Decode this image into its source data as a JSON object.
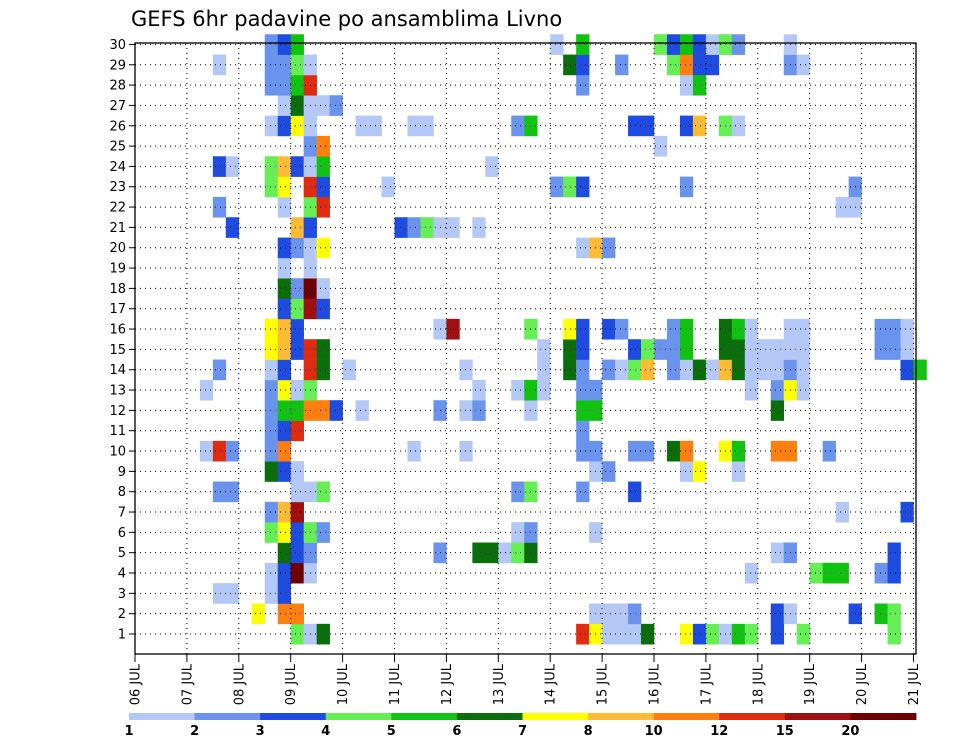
{
  "chart_data": {
    "type": "heatmap",
    "title": "GEFS 6hr padavine po ansamblima Livno",
    "y_ticks": [
      "1",
      "2",
      "3",
      "4",
      "5",
      "6",
      "7",
      "8",
      "9",
      "10",
      "11",
      "12",
      "13",
      "14",
      "15",
      "16",
      "17",
      "18",
      "19",
      "20",
      "21",
      "22",
      "23",
      "24",
      "25",
      "26",
      "27",
      "28",
      "29",
      "30"
    ],
    "x_ticks": [
      "06 JUL",
      "07 JUL",
      "08 JUL",
      "09 JUL",
      "10 JUL",
      "11 JUL",
      "12 JUL",
      "13 JUL",
      "14 JUL",
      "15 JUL",
      "16 JUL",
      "17 JUL",
      "18 JUL",
      "19 JUL",
      "20 JUL",
      "21 JUL"
    ],
    "grid": true,
    "colorbar": {
      "ticks": [
        "1",
        "2",
        "3",
        "4",
        "5",
        "6",
        "7",
        "8",
        "10",
        "12",
        "15",
        "20"
      ],
      "colors": [
        "#b3c8f6",
        "#6a93ee",
        "#1e4be0",
        "#66ee55",
        "#11c311",
        "#0a6e0a",
        "#ffff00",
        "#ffbb33",
        "#ff7f0f",
        "#e02b11",
        "#a01010",
        "#6e0000"
      ]
    },
    "cells": [
      [
        1,
        3.0,
        4,
        1
      ],
      [
        1,
        3.25,
        1,
        1
      ],
      [
        1,
        3.5,
        6,
        1
      ],
      [
        1,
        8.5,
        10,
        1
      ],
      [
        1,
        8.75,
        7,
        1
      ],
      [
        1,
        9.0,
        1,
        1
      ],
      [
        1,
        9.25,
        1,
        1
      ],
      [
        1,
        9.5,
        1,
        1
      ],
      [
        1,
        9.75,
        6,
        1
      ],
      [
        1,
        10.5,
        7,
        1
      ],
      [
        1,
        10.75,
        3,
        1
      ],
      [
        1,
        11.0,
        4,
        1
      ],
      [
        1,
        11.25,
        1,
        1
      ],
      [
        1,
        11.5,
        5,
        1
      ],
      [
        1,
        11.75,
        4,
        1
      ],
      [
        1,
        12.25,
        3,
        1
      ],
      [
        1,
        12.75,
        4,
        1
      ],
      [
        1,
        14.5,
        4,
        1
      ],
      [
        2,
        2.25,
        7,
        1
      ],
      [
        2,
        2.75,
        9,
        2
      ],
      [
        2,
        8.75,
        1,
        3
      ],
      [
        2,
        9.5,
        2,
        1
      ],
      [
        2,
        12.25,
        3,
        1
      ],
      [
        2,
        12.5,
        1,
        1
      ],
      [
        2,
        13.75,
        3,
        1
      ],
      [
        2,
        14.25,
        5,
        1
      ],
      [
        2,
        14.5,
        4,
        1
      ],
      [
        3,
        1.5,
        1,
        2
      ],
      [
        3,
        2.5,
        1,
        1
      ],
      [
        3,
        2.75,
        3,
        1
      ],
      [
        4,
        2.5,
        1,
        1
      ],
      [
        4,
        2.75,
        3,
        1
      ],
      [
        4,
        3.0,
        12,
        1
      ],
      [
        4,
        3.25,
        1,
        1
      ],
      [
        4,
        11.75,
        1,
        1
      ],
      [
        4,
        13.0,
        4,
        1
      ],
      [
        4,
        13.25,
        5,
        2
      ],
      [
        4,
        14.25,
        2,
        1
      ],
      [
        4,
        14.5,
        3,
        1
      ],
      [
        5,
        2.75,
        6,
        1
      ],
      [
        5,
        3.0,
        3,
        1
      ],
      [
        5,
        3.25,
        2,
        1
      ],
      [
        5,
        5.75,
        2,
        1
      ],
      [
        5,
        6.5,
        6,
        2
      ],
      [
        5,
        7.0,
        1,
        1
      ],
      [
        5,
        7.25,
        4,
        1
      ],
      [
        5,
        7.5,
        6,
        1
      ],
      [
        5,
        12.25,
        1,
        1
      ],
      [
        5,
        12.5,
        2,
        1
      ],
      [
        5,
        14.5,
        3,
        1
      ],
      [
        6,
        2.5,
        4,
        1
      ],
      [
        6,
        2.75,
        7,
        1
      ],
      [
        6,
        3.0,
        3,
        1
      ],
      [
        6,
        3.25,
        4,
        1
      ],
      [
        6,
        3.5,
        2,
        1
      ],
      [
        6,
        7.25,
        1,
        1
      ],
      [
        6,
        7.5,
        2,
        1
      ],
      [
        6,
        8.75,
        1,
        1
      ],
      [
        7,
        2.5,
        2,
        1
      ],
      [
        7,
        2.75,
        8,
        1
      ],
      [
        7,
        3.0,
        11,
        1
      ],
      [
        7,
        13.5,
        1,
        1
      ],
      [
        7,
        14.75,
        3,
        1
      ],
      [
        8,
        1.5,
        2,
        2
      ],
      [
        8,
        3.0,
        1,
        2
      ],
      [
        8,
        3.5,
        4,
        1
      ],
      [
        8,
        7.25,
        2,
        1
      ],
      [
        8,
        7.5,
        4,
        1
      ],
      [
        8,
        8.5,
        2,
        1
      ],
      [
        8,
        9.5,
        3,
        1
      ],
      [
        9,
        2.5,
        6,
        1
      ],
      [
        9,
        2.75,
        3,
        1
      ],
      [
        9,
        3.0,
        1,
        1
      ],
      [
        9,
        8.75,
        1,
        1
      ],
      [
        9,
        9.0,
        2,
        1
      ],
      [
        9,
        10.5,
        1,
        1
      ],
      [
        9,
        10.75,
        7,
        1
      ],
      [
        9,
        11.5,
        1,
        1
      ],
      [
        10,
        1.25,
        1,
        1
      ],
      [
        10,
        1.5,
        10,
        1
      ],
      [
        10,
        1.75,
        2,
        1
      ],
      [
        10,
        2.5,
        2,
        1
      ],
      [
        10,
        2.75,
        9,
        1
      ],
      [
        10,
        5.25,
        1,
        1
      ],
      [
        10,
        6.25,
        1,
        1
      ],
      [
        10,
        8.5,
        2,
        2
      ],
      [
        10,
        9.5,
        2,
        2
      ],
      [
        10,
        10.25,
        6,
        1
      ],
      [
        10,
        10.5,
        9,
        1
      ],
      [
        10,
        11.25,
        7,
        1
      ],
      [
        10,
        11.5,
        5,
        1
      ],
      [
        10,
        12.25,
        9,
        2
      ],
      [
        10,
        13.25,
        2,
        1
      ],
      [
        11,
        2.5,
        2,
        1
      ],
      [
        11,
        2.75,
        3,
        1
      ],
      [
        11,
        3.0,
        10,
        1
      ],
      [
        11,
        8.5,
        2,
        1
      ],
      [
        12,
        2.5,
        2,
        1
      ],
      [
        12,
        2.75,
        5,
        1
      ],
      [
        12,
        3.0,
        5,
        1
      ],
      [
        12,
        3.25,
        9,
        2
      ],
      [
        12,
        3.75,
        3,
        1
      ],
      [
        12,
        4.25,
        1,
        1
      ],
      [
        12,
        5.75,
        2,
        1
      ],
      [
        12,
        6.25,
        1,
        1
      ],
      [
        12,
        6.5,
        2,
        1
      ],
      [
        12,
        7.5,
        1,
        1
      ],
      [
        12,
        8.5,
        5,
        2
      ],
      [
        12,
        12.25,
        6,
        1
      ],
      [
        13,
        2.5,
        2,
        1
      ],
      [
        13,
        2.75,
        7,
        1
      ],
      [
        13,
        3.0,
        1,
        1
      ],
      [
        13,
        3.25,
        4,
        1
      ],
      [
        13,
        1.25,
        1,
        1
      ],
      [
        13,
        6.5,
        1,
        1
      ],
      [
        13,
        7.25,
        1,
        1
      ],
      [
        13,
        7.5,
        5,
        1
      ],
      [
        13,
        7.75,
        1,
        1
      ],
      [
        13,
        8.5,
        2,
        2
      ],
      [
        13,
        11.75,
        1,
        1
      ],
      [
        13,
        12.25,
        2,
        1
      ],
      [
        13,
        12.5,
        7,
        1
      ],
      [
        13,
        12.75,
        1,
        1
      ],
      [
        14,
        1.5,
        2,
        1
      ],
      [
        14,
        2.5,
        1,
        1
      ],
      [
        14,
        2.75,
        3,
        1
      ],
      [
        14,
        3.25,
        10,
        1
      ],
      [
        14,
        3.5,
        6,
        1
      ],
      [
        14,
        4.0,
        1,
        1
      ],
      [
        14,
        6.25,
        1,
        1
      ],
      [
        14,
        7.75,
        1,
        1
      ],
      [
        14,
        8.25,
        6,
        1
      ],
      [
        14,
        8.5,
        2,
        1
      ],
      [
        14,
        9.0,
        2,
        1
      ],
      [
        14,
        9.25,
        1,
        1
      ],
      [
        14,
        9.5,
        4,
        1
      ],
      [
        14,
        9.75,
        8,
        1
      ],
      [
        14,
        10.25,
        2,
        1
      ],
      [
        14,
        10.5,
        1,
        1
      ],
      [
        14,
        10.75,
        6,
        1
      ],
      [
        14,
        11.0,
        1,
        1
      ],
      [
        14,
        11.25,
        8,
        1
      ],
      [
        14,
        11.5,
        6,
        1
      ],
      [
        14,
        11.75,
        1,
        1
      ],
      [
        14,
        12.0,
        1,
        1
      ],
      [
        14,
        12.25,
        1,
        1
      ],
      [
        14,
        12.5,
        2,
        1
      ],
      [
        14,
        12.75,
        1,
        1
      ],
      [
        14,
        14.75,
        3,
        1
      ],
      [
        14,
        15.0,
        5,
        1
      ],
      [
        15,
        2.5,
        7,
        1
      ],
      [
        15,
        2.75,
        8,
        1
      ],
      [
        15,
        3.0,
        3,
        1
      ],
      [
        15,
        3.25,
        10,
        1
      ],
      [
        15,
        3.5,
        6,
        1
      ],
      [
        15,
        7.75,
        1,
        1
      ],
      [
        15,
        8.25,
        6,
        1
      ],
      [
        15,
        8.5,
        3,
        1
      ],
      [
        15,
        9.5,
        3,
        1
      ],
      [
        15,
        9.75,
        4,
        1
      ],
      [
        15,
        10.0,
        2,
        1
      ],
      [
        15,
        10.25,
        2,
        1
      ],
      [
        15,
        10.5,
        5,
        1
      ],
      [
        15,
        11.25,
        6,
        1
      ],
      [
        15,
        11.5,
        6,
        1
      ],
      [
        15,
        11.75,
        1,
        1
      ],
      [
        15,
        12.0,
        1,
        1
      ],
      [
        15,
        12.25,
        1,
        1
      ],
      [
        15,
        12.5,
        1,
        1
      ],
      [
        15,
        12.75,
        1,
        1
      ],
      [
        15,
        14.25,
        2,
        1
      ],
      [
        15,
        14.5,
        2,
        1
      ],
      [
        15,
        14.75,
        1,
        1
      ],
      [
        16,
        2.5,
        7,
        1
      ],
      [
        16,
        2.75,
        8,
        1
      ],
      [
        16,
        3.0,
        3,
        1
      ],
      [
        16,
        5.75,
        1,
        1
      ],
      [
        16,
        6.0,
        11,
        1
      ],
      [
        16,
        7.5,
        4,
        1
      ],
      [
        16,
        8.25,
        7,
        1
      ],
      [
        16,
        8.5,
        3,
        1
      ],
      [
        16,
        9.0,
        3,
        1
      ],
      [
        16,
        9.25,
        2,
        1
      ],
      [
        16,
        10.25,
        2,
        1
      ],
      [
        16,
        10.5,
        5,
        1
      ],
      [
        16,
        11.25,
        6,
        1
      ],
      [
        16,
        11.5,
        5,
        1
      ],
      [
        16,
        11.75,
        1,
        1
      ],
      [
        16,
        12.5,
        1,
        2
      ],
      [
        16,
        14.25,
        2,
        2
      ],
      [
        16,
        14.75,
        1,
        1
      ],
      [
        17,
        2.75,
        3,
        1
      ],
      [
        17,
        3.0,
        4,
        1
      ],
      [
        17,
        3.25,
        11,
        1
      ],
      [
        17,
        3.5,
        3,
        1
      ],
      [
        18,
        2.75,
        6,
        1
      ],
      [
        18,
        3.0,
        2,
        1
      ],
      [
        18,
        3.25,
        12,
        1
      ],
      [
        18,
        3.5,
        1,
        1
      ],
      [
        19,
        2.75,
        1,
        1
      ],
      [
        19,
        3.25,
        1,
        1
      ],
      [
        20,
        2.75,
        3,
        1
      ],
      [
        20,
        3.0,
        2,
        1
      ],
      [
        20,
        3.25,
        1,
        1
      ],
      [
        20,
        3.5,
        7,
        1
      ],
      [
        20,
        8.5,
        1,
        1
      ],
      [
        20,
        8.75,
        8,
        1
      ],
      [
        20,
        9.0,
        2,
        1
      ],
      [
        21,
        1.75,
        3,
        1
      ],
      [
        21,
        3.0,
        8,
        1
      ],
      [
        21,
        3.25,
        3,
        1
      ],
      [
        21,
        5.0,
        3,
        1
      ],
      [
        21,
        5.25,
        2,
        1
      ],
      [
        21,
        5.5,
        4,
        1
      ],
      [
        21,
        5.75,
        1,
        1
      ],
      [
        21,
        6.0,
        1,
        1
      ],
      [
        21,
        6.5,
        1,
        1
      ],
      [
        22,
        1.5,
        2,
        1
      ],
      [
        22,
        2.75,
        1,
        1
      ],
      [
        22,
        3.25,
        4,
        1
      ],
      [
        22,
        3.5,
        10,
        1
      ],
      [
        22,
        13.5,
        1,
        2
      ],
      [
        23,
        2.5,
        4,
        1
      ],
      [
        23,
        2.75,
        7,
        1
      ],
      [
        23,
        3.25,
        10,
        1
      ],
      [
        23,
        3.5,
        3,
        1
      ],
      [
        23,
        4.75,
        1,
        1
      ],
      [
        23,
        8.0,
        2,
        1
      ],
      [
        23,
        8.25,
        4,
        1
      ],
      [
        23,
        8.5,
        3,
        1
      ],
      [
        23,
        10.5,
        2,
        1
      ],
      [
        23,
        13.75,
        2,
        1
      ],
      [
        24,
        1.5,
        3,
        1
      ],
      [
        24,
        1.75,
        1,
        1
      ],
      [
        24,
        2.5,
        4,
        1
      ],
      [
        24,
        2.75,
        8,
        1
      ],
      [
        24,
        3.0,
        3,
        1
      ],
      [
        24,
        3.25,
        1,
        1
      ],
      [
        24,
        3.5,
        5,
        1
      ],
      [
        24,
        6.75,
        1,
        1
      ],
      [
        25,
        3.25,
        2,
        1
      ],
      [
        25,
        3.5,
        9,
        1
      ],
      [
        25,
        10.0,
        1,
        1
      ],
      [
        26,
        2.5,
        1,
        1
      ],
      [
        26,
        2.75,
        3,
        1
      ],
      [
        26,
        3.0,
        7,
        1
      ],
      [
        26,
        3.25,
        1,
        1
      ],
      [
        26,
        4.25,
        1,
        2
      ],
      [
        26,
        5.25,
        1,
        2
      ],
      [
        26,
        7.25,
        2,
        1
      ],
      [
        26,
        7.5,
        5,
        1
      ],
      [
        26,
        9.5,
        3,
        2
      ],
      [
        26,
        10.5,
        3,
        1
      ],
      [
        26,
        10.75,
        8,
        1
      ],
      [
        26,
        11.25,
        4,
        1
      ],
      [
        26,
        11.5,
        1,
        1
      ],
      [
        27,
        2.75,
        1,
        1
      ],
      [
        27,
        3.0,
        6,
        1
      ],
      [
        27,
        3.25,
        1,
        2
      ],
      [
        27,
        3.75,
        2,
        1
      ],
      [
        28,
        2.5,
        2,
        2
      ],
      [
        28,
        3.0,
        5,
        1
      ],
      [
        28,
        3.25,
        10,
        1
      ],
      [
        28,
        8.5,
        2,
        1
      ],
      [
        28,
        10.5,
        1,
        1
      ],
      [
        28,
        10.75,
        5,
        1
      ],
      [
        29,
        1.5,
        1,
        1
      ],
      [
        29,
        2.5,
        2,
        2
      ],
      [
        29,
        3.0,
        4,
        1
      ],
      [
        29,
        3.25,
        1,
        1
      ],
      [
        29,
        8.25,
        6,
        1
      ],
      [
        29,
        8.5,
        3,
        1
      ],
      [
        29,
        9.25,
        2,
        1
      ],
      [
        29,
        10.25,
        4,
        1
      ],
      [
        29,
        10.5,
        9,
        1
      ],
      [
        29,
        10.75,
        3,
        2
      ],
      [
        29,
        12.5,
        2,
        1
      ],
      [
        29,
        12.75,
        1,
        1
      ],
      [
        30,
        2.5,
        2,
        1
      ],
      [
        30,
        2.75,
        3,
        1
      ],
      [
        30,
        3.0,
        5,
        1
      ],
      [
        30,
        8.0,
        1,
        1
      ],
      [
        30,
        8.5,
        5,
        1
      ],
      [
        30,
        10.0,
        4,
        1
      ],
      [
        30,
        10.25,
        3,
        1
      ],
      [
        30,
        10.5,
        5,
        1
      ],
      [
        30,
        10.75,
        3,
        1
      ],
      [
        30,
        11.0,
        1,
        1
      ],
      [
        30,
        11.25,
        4,
        1
      ],
      [
        30,
        11.5,
        2,
        1
      ],
      [
        30,
        12.5,
        1,
        1
      ]
    ]
  }
}
